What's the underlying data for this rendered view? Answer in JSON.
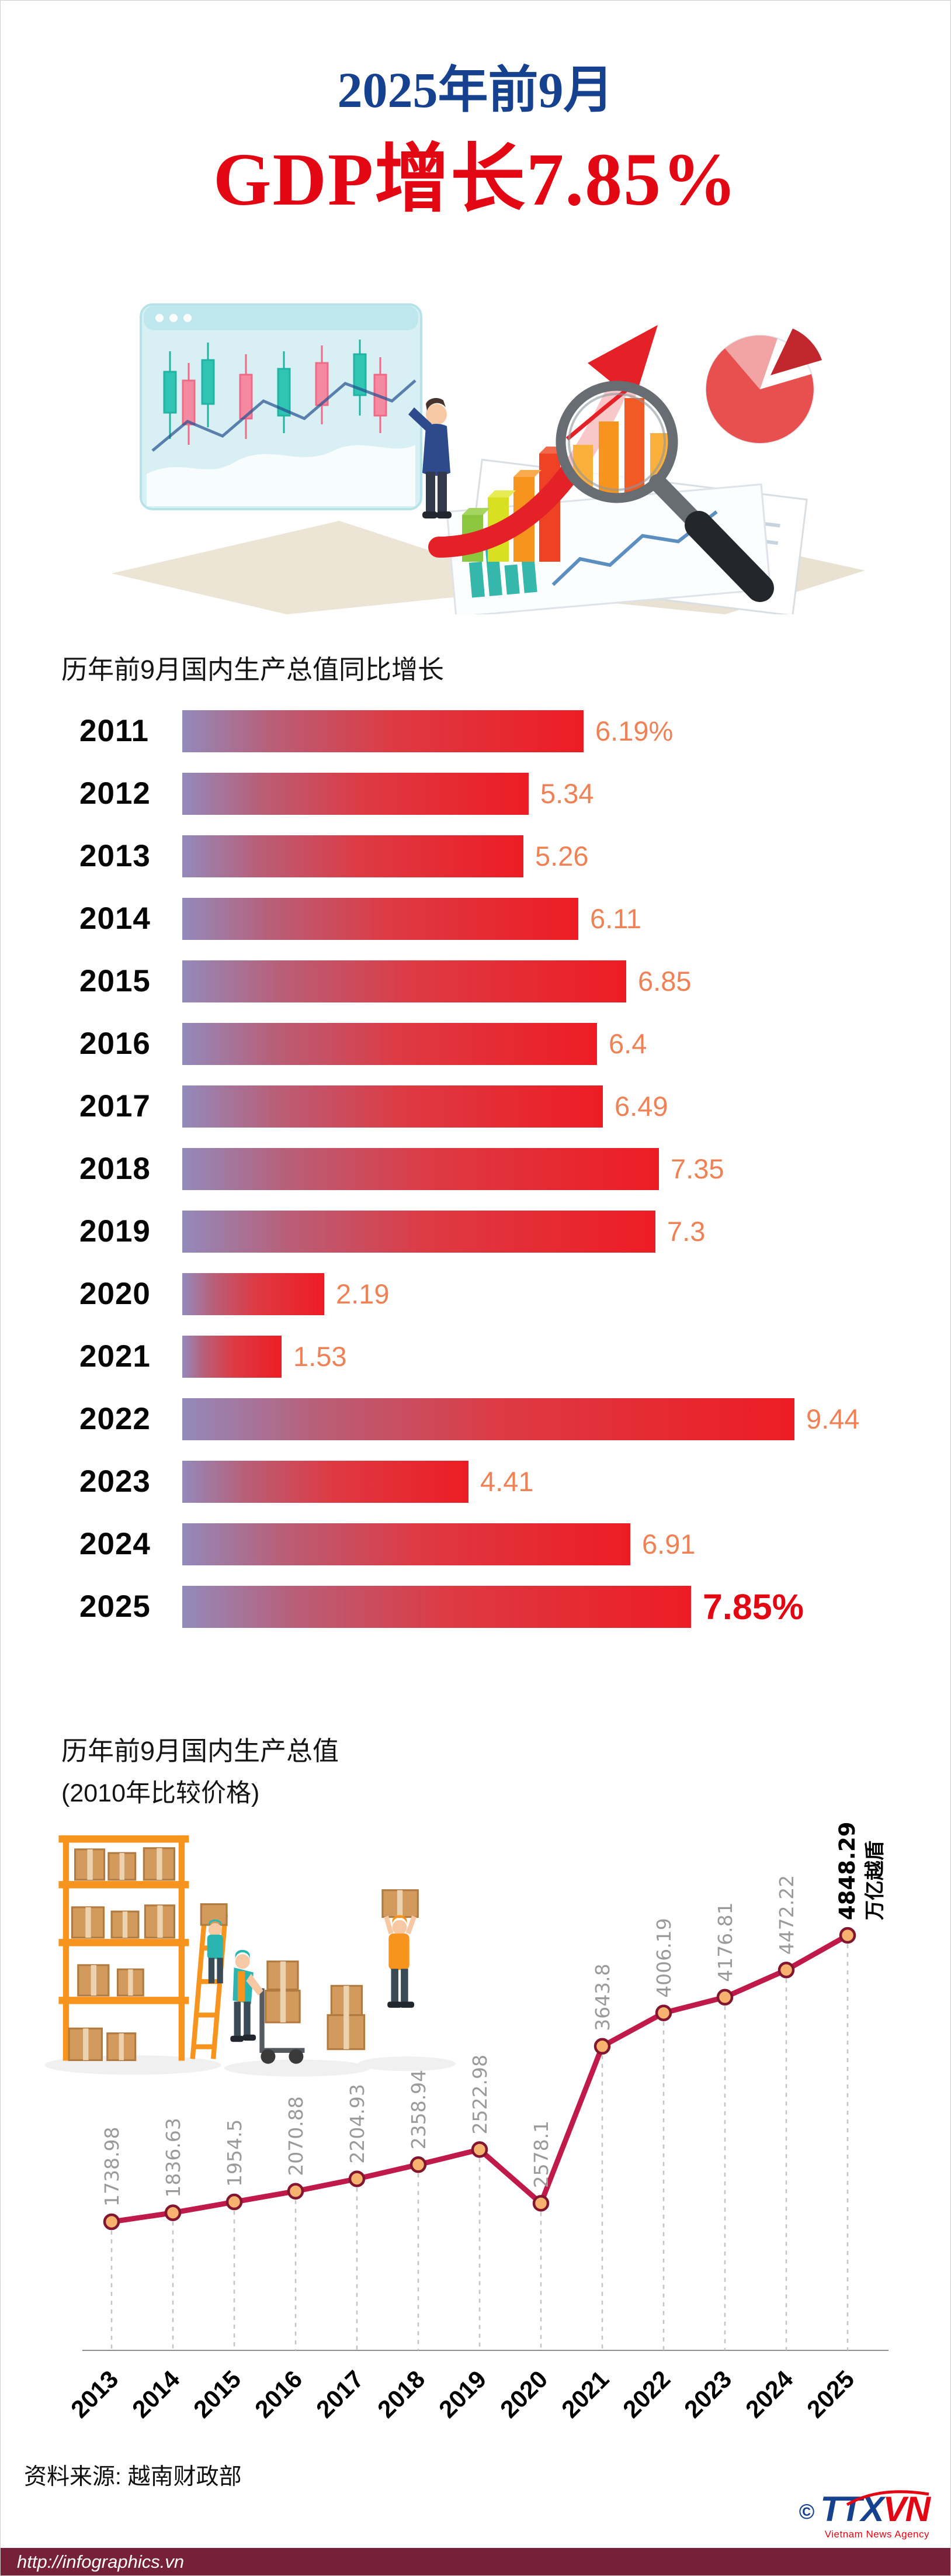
{
  "header": {
    "subtitle": "2025年前9月",
    "title": "GDP增长7.85%"
  },
  "chart_data": [
    {
      "type": "bar",
      "orientation": "horizontal",
      "title": "历年前9月国内生产总值同比增长",
      "categories": [
        "2011",
        "2012",
        "2013",
        "2014",
        "2015",
        "2016",
        "2017",
        "2018",
        "2019",
        "2020",
        "2021",
        "2022",
        "2023",
        "2024",
        "2025"
      ],
      "values": [
        6.19,
        5.34,
        5.26,
        6.11,
        6.85,
        6.4,
        6.49,
        7.35,
        7.3,
        2.19,
        1.53,
        9.44,
        4.41,
        6.91,
        7.85
      ],
      "value_labels": [
        "6.19%",
        "5.34",
        "5.26",
        "6.11",
        "6.85",
        "6.4",
        "6.49",
        "7.35",
        "7.3",
        "2.19",
        "1.53",
        "9.44",
        "4.41",
        "6.91",
        "7.85%"
      ],
      "xlim": [
        0,
        10
      ],
      "grid": false,
      "bar_gradient": [
        "#938abc",
        "#ed1c24"
      ],
      "value_label_color": "#ef8155",
      "highlight_category": "2025",
      "highlight_color": "#e30613"
    },
    {
      "type": "line",
      "title": "历年前9月国内生产总值",
      "subtitle": "(2010年比较价格)",
      "unit": "万亿越盾",
      "categories": [
        "2013",
        "2014",
        "2015",
        "2016",
        "2017",
        "2018",
        "2019",
        "2020",
        "2021",
        "2022",
        "2023",
        "2024",
        "2025"
      ],
      "values": [
        1738.98,
        1836.63,
        1954.5,
        2070.88,
        2204.93,
        2358.94,
        2522.98,
        2578.1,
        3643.8,
        4006.19,
        4176.81,
        4472.22,
        4848.29
      ],
      "value_labels": [
        "1738.98",
        "1836.63",
        "1954.5",
        "2070.88",
        "2204.93",
        "2358.94",
        "2522.98",
        "2578.1",
        "3643.8",
        "4006.19",
        "4176.81",
        "4472.22",
        "4848.29"
      ],
      "highlight_category": "2025",
      "line_color": "#c01a4a",
      "marker_fill": "#f6b26e",
      "marker_stroke": "#82152f",
      "value_label_color": "#9a9a9a",
      "drawn_dip_category": "2020",
      "drawn_dip_plot_value": 1940,
      "ylim_plot": [
        1450,
        5100
      ],
      "grid": "dashed-vertical"
    }
  ],
  "footer": {
    "source": "资料来源: 越南财政部",
    "website": "http://infographics.vn",
    "logo": {
      "copyright": "©",
      "ttx": "TTX",
      "vn": "VN",
      "agency": "Vietnam News Agency"
    }
  }
}
